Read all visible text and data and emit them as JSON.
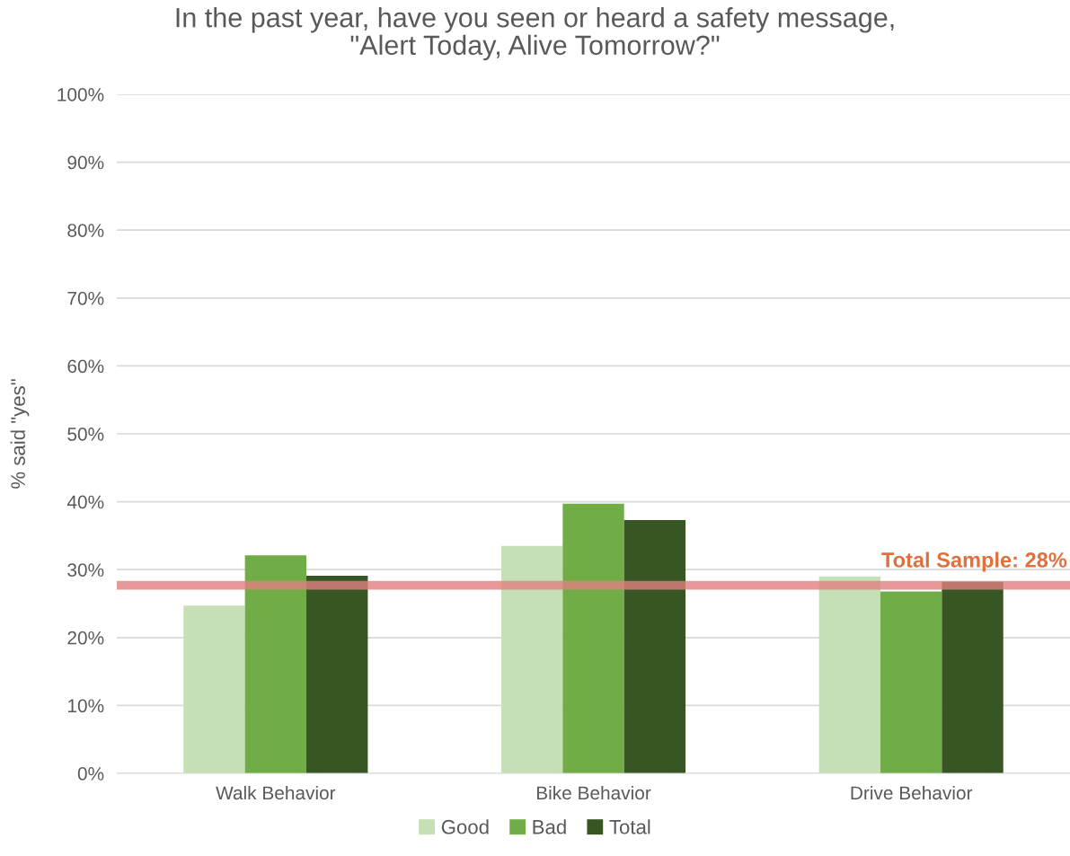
{
  "chart_data": {
    "type": "bar",
    "title": "In the past year, have you seen or heard a safety message,\n\"Alert Today, Alive Tomorrow?\"",
    "ylabel": "% said \"yes\"",
    "categories": [
      "Walk Behavior",
      "Bike Behavior",
      "Drive Behavior"
    ],
    "series": [
      {
        "name": "Good",
        "color": "#c5e0b4",
        "values": [
          24.7,
          33.5,
          29.0
        ]
      },
      {
        "name": "Bad",
        "color": "#70ad47",
        "values": [
          32.1,
          39.7,
          26.8
        ]
      },
      {
        "name": "Total",
        "color": "#375623",
        "values": [
          29.1,
          37.3,
          28.2
        ]
      }
    ],
    "ylim": [
      0,
      100
    ],
    "yticks": [
      {
        "value": 0,
        "label": "0%"
      },
      {
        "value": 10,
        "label": "10%"
      },
      {
        "value": 20,
        "label": "20%"
      },
      {
        "value": 30,
        "label": "30%"
      },
      {
        "value": 40,
        "label": "40%"
      },
      {
        "value": 50,
        "label": "50%"
      },
      {
        "value": 60,
        "label": "60%"
      },
      {
        "value": 70,
        "label": "70%"
      },
      {
        "value": 80,
        "label": "80%"
      },
      {
        "value": 90,
        "label": "90%"
      },
      {
        "value": 100,
        "label": "100%"
      }
    ],
    "ref_lines": [
      {
        "axis": "y",
        "value": 27.7,
        "label": "Total Sample: 28%",
        "color": "#e08080"
      }
    ],
    "grid": "y",
    "legend": "bottom"
  }
}
